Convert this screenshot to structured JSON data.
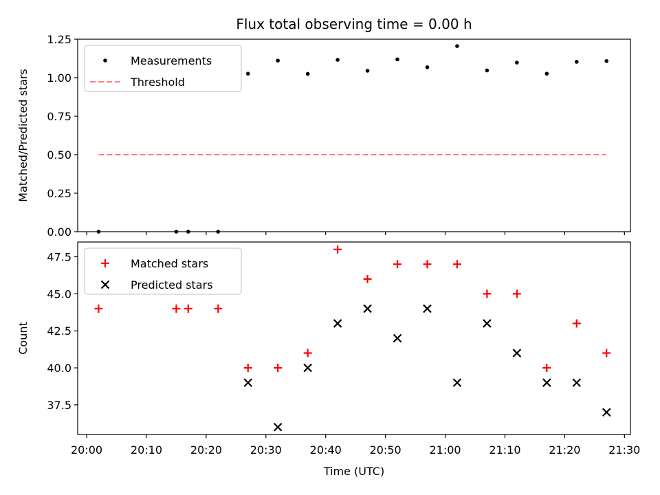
{
  "figure": {
    "title": "Flux total observing time = 0.00 h",
    "xlabel": "Time (UTC)"
  },
  "chart_data": [
    {
      "type": "scatter",
      "panel": "top",
      "ylabel": "Matched/Predicted stars",
      "ylim": [
        0,
        1.25
      ],
      "yticks": [
        0.0,
        0.25,
        0.5,
        0.75,
        1.0,
        1.25
      ],
      "ytick_labels": [
        "0.00",
        "0.25",
        "0.50",
        "0.75",
        "1.00",
        "1.25"
      ],
      "xlim": [
        "19:58:30",
        "21:31:00"
      ],
      "xticks": [
        "20:00",
        "20:10",
        "20:20",
        "20:30",
        "20:40",
        "20:50",
        "21:00",
        "21:10",
        "21:20",
        "21:30"
      ],
      "legend_position": "upper-left",
      "series": [
        {
          "name": "Measurements",
          "kind": "point",
          "color": "#000000",
          "x": [
            "20:02",
            "20:15",
            "20:17",
            "20:22",
            "20:27",
            "20:32",
            "20:37",
            "20:42",
            "20:47",
            "20:52",
            "20:57",
            "21:02",
            "21:07",
            "21:12",
            "21:17",
            "21:22",
            "21:27"
          ],
          "y": [
            0.0,
            0.0,
            0.0,
            0.0,
            1.026,
            1.111,
            1.025,
            1.116,
            1.045,
            1.119,
            1.068,
            1.205,
            1.047,
            1.098,
            1.026,
            1.103,
            1.108
          ]
        },
        {
          "name": "Threshold",
          "kind": "dashed-line",
          "color": "#ff7f7f",
          "x": [
            "20:02",
            "21:27"
          ],
          "y": [
            0.5,
            0.5
          ]
        }
      ]
    },
    {
      "type": "scatter",
      "panel": "bottom",
      "ylabel": "Count",
      "ylim": [
        35.5,
        48.5
      ],
      "yticks": [
        37.5,
        40.0,
        42.5,
        45.0,
        47.5
      ],
      "ytick_labels": [
        "37.5",
        "40.0",
        "42.5",
        "45.0",
        "47.5"
      ],
      "xlim": [
        "19:58:30",
        "21:31:00"
      ],
      "xticks": [
        "20:00",
        "20:10",
        "20:20",
        "20:30",
        "20:40",
        "20:50",
        "21:00",
        "21:10",
        "21:20",
        "21:30"
      ],
      "legend_position": "upper-left",
      "series": [
        {
          "name": "Matched stars",
          "kind": "plus",
          "color": "#ff0000",
          "x": [
            "20:02",
            "20:15",
            "20:17",
            "20:22",
            "20:27",
            "20:32",
            "20:37",
            "20:42",
            "20:47",
            "20:52",
            "20:57",
            "21:02",
            "21:07",
            "21:12",
            "21:17",
            "21:22",
            "21:27"
          ],
          "y": [
            44,
            44,
            44,
            44,
            40,
            40,
            41,
            48,
            46,
            47,
            47,
            47,
            45,
            45,
            40,
            43,
            41
          ]
        },
        {
          "name": "Predicted stars",
          "kind": "cross",
          "color": "#000000",
          "x": [
            "20:27",
            "20:32",
            "20:37",
            "20:42",
            "20:47",
            "20:52",
            "20:57",
            "21:02",
            "21:07",
            "21:12",
            "21:17",
            "21:22",
            "21:27"
          ],
          "y": [
            39,
            36,
            40,
            43,
            44,
            42,
            44,
            39,
            43,
            41,
            39,
            39,
            37
          ]
        }
      ]
    }
  ]
}
